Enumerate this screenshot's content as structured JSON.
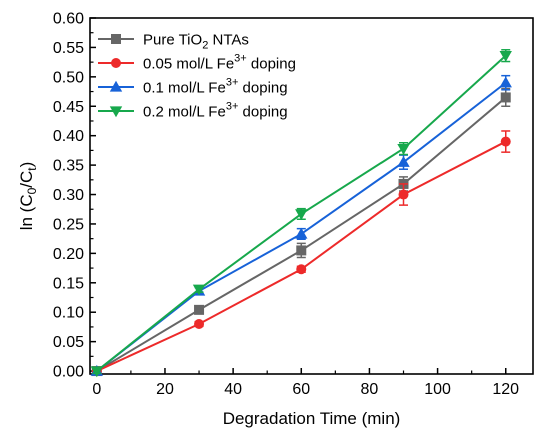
{
  "chart_data": {
    "type": "line",
    "xlabel": "Degradation Time (min)",
    "ylabel": "ln (C0/Ct)",
    "ylabel_parts": {
      "prefix": "ln (C",
      "sub1": "0",
      "mid": "/C",
      "sub2": "t",
      "suffix": ")"
    },
    "xlim": [
      -2,
      128
    ],
    "ylim": [
      -0.005,
      0.6
    ],
    "x_ticks": [
      0,
      20,
      40,
      60,
      80,
      100,
      120
    ],
    "y_ticks": [
      0.0,
      0.05,
      0.1,
      0.15,
      0.2,
      0.25,
      0.3,
      0.35,
      0.4,
      0.45,
      0.5,
      0.55,
      0.6
    ],
    "x_tick_labels": [
      "0",
      "20",
      "40",
      "60",
      "80",
      "100",
      "120"
    ],
    "y_tick_labels": [
      "0.00",
      "0.05",
      "0.10",
      "0.15",
      "0.20",
      "0.25",
      "0.30",
      "0.35",
      "0.40",
      "0.45",
      "0.50",
      "0.55",
      "0.60"
    ],
    "grid": false,
    "legend_position": "top-left",
    "x": [
      0,
      30,
      60,
      90,
      120
    ],
    "series": [
      {
        "name": "Pure TiO2 NTAs",
        "name_parts": {
          "prefix": "Pure TiO",
          "sub": "2",
          "sup": "",
          "suffix": " NTAs"
        },
        "color": "#666666",
        "marker": "square",
        "values": [
          0.0,
          0.104,
          0.205,
          0.318,
          0.465
        ],
        "errors": [
          0.004,
          0.006,
          0.012,
          0.012,
          0.015
        ]
      },
      {
        "name": "0.05 mol/L Fe3+ doping",
        "name_parts": {
          "prefix": "0.05 mol/L Fe",
          "sub": "",
          "sup": "3+",
          "suffix": " doping"
        },
        "color": "#ed2a2a",
        "marker": "circle",
        "values": [
          0.0,
          0.08,
          0.173,
          0.3,
          0.39
        ],
        "errors": [
          0.003,
          0.004,
          0.005,
          0.018,
          0.018
        ]
      },
      {
        "name": "0.1 mol/L Fe3+ doping",
        "name_parts": {
          "prefix": "0.1 mol/L Fe",
          "sub": "",
          "sup": "3+",
          "suffix": " doping"
        },
        "color": "#1762d8",
        "marker": "triangle-up",
        "values": [
          0.0,
          0.136,
          0.233,
          0.355,
          0.49
        ],
        "errors": [
          0.004,
          0.006,
          0.009,
          0.012,
          0.012
        ]
      },
      {
        "name": "0.2 mol/L Fe3+ doping",
        "name_parts": {
          "prefix": "0.2 mol/L Fe",
          "sub": "",
          "sup": "3+",
          "suffix": " doping"
        },
        "color": "#17a84c",
        "marker": "triangle-down",
        "values": [
          0.0,
          0.139,
          0.267,
          0.378,
          0.536
        ],
        "errors": [
          0.004,
          0.005,
          0.009,
          0.01,
          0.01
        ]
      }
    ]
  }
}
